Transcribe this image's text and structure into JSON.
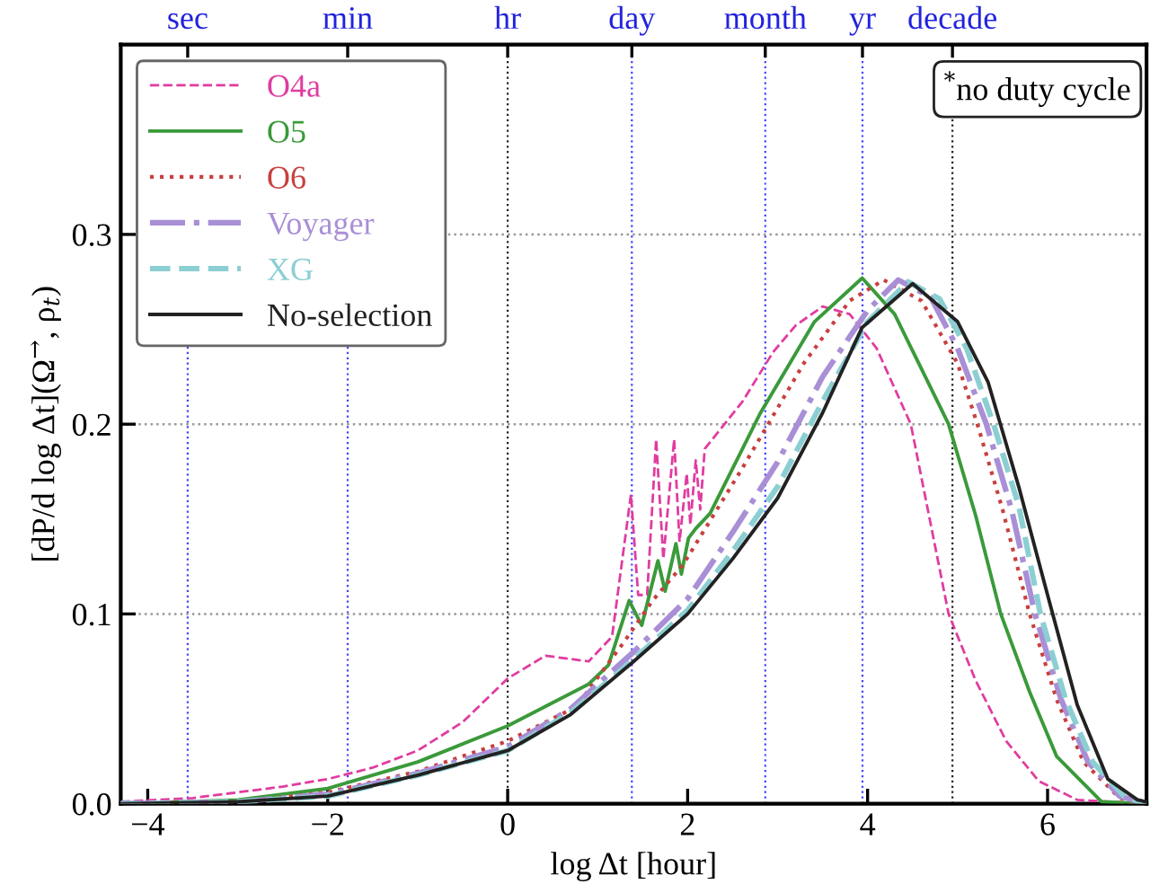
{
  "chart_data": {
    "type": "line",
    "xlabel": "log Δt [hour]",
    "ylabel": "[dP/d log Δt](Ω$^{→}$, ρ$_{t}$)",
    "xlim": [
      -4.3,
      7.1
    ],
    "ylim": [
      0,
      0.4
    ],
    "xticks": [
      {
        "value": -4,
        "label": "−4"
      },
      {
        "value": -2,
        "label": "−2"
      },
      0,
      2,
      4,
      6
    ],
    "yticks": [
      {
        "value": 0,
        "label": "0.0"
      },
      0.1,
      0.2,
      0.3
    ],
    "ref_lines": [
      {
        "axis": "x",
        "value": -3.556,
        "label": "sec",
        "color": "#4444ff",
        "line_style": "dotted"
      },
      {
        "axis": "x",
        "value": -1.778,
        "label": "min",
        "color": "#4444ff",
        "line_style": "dotted"
      },
      {
        "axis": "x",
        "value": 0,
        "label": "hr",
        "color": "#222222",
        "line_style": "dotted"
      },
      {
        "axis": "x",
        "value": 1.38,
        "label": "day",
        "color": "#4444ff",
        "line_style": "dotted"
      },
      {
        "axis": "x",
        "value": 2.863,
        "label": "month",
        "color": "#4444ff",
        "line_style": "dotted"
      },
      {
        "axis": "x",
        "value": 3.943,
        "label": "yr",
        "color": "#4444ff",
        "line_style": "dotted"
      },
      {
        "axis": "x",
        "value": 4.943,
        "label": "decade",
        "color": "#222222",
        "line_style": "dotted"
      }
    ],
    "grid": "y",
    "legend": "top left",
    "annotations": [
      "$^{*}$no duty cycle"
    ],
    "series": [
      {
        "name": "O4a",
        "color": "#e03ca0",
        "line_style": "dashed",
        "x": [
          -4.3,
          -3.5,
          -3,
          -2.5,
          -2,
          -1.5,
          -1,
          -0.5,
          0,
          0.42,
          0.9,
          1.16,
          1.37,
          1.45,
          1.55,
          1.65,
          1.73,
          1.85,
          1.91,
          1.99,
          2.03,
          2.09,
          2.14,
          2.19,
          2.61,
          2.95,
          3.2,
          3.5,
          3.8,
          4.1,
          4.48,
          4.9,
          5.2,
          5.54,
          5.9,
          6.33,
          7.1
        ],
        "values": [
          0.001,
          0.003,
          0.006,
          0.009,
          0.013,
          0.019,
          0.028,
          0.043,
          0.066,
          0.078,
          0.075,
          0.088,
          0.163,
          0.11,
          0.11,
          0.192,
          0.129,
          0.192,
          0.138,
          0.174,
          0.147,
          0.181,
          0.155,
          0.187,
          0.212,
          0.238,
          0.252,
          0.262,
          0.258,
          0.24,
          0.2,
          0.1,
          0.065,
          0.033,
          0.012,
          0.002,
          0
        ]
      },
      {
        "name": "O5",
        "color": "#3a9a3a",
        "line_style": "solid",
        "x": [
          -4.3,
          -3,
          -2,
          -1,
          0,
          0.9,
          1.12,
          1.35,
          1.49,
          1.67,
          1.75,
          1.87,
          1.93,
          2.01,
          2.09,
          2.25,
          2.81,
          3.41,
          3.94,
          4.3,
          4.6,
          4.9,
          5.2,
          5.48,
          5.8,
          6.1,
          6.6,
          7.1
        ],
        "values": [
          0,
          0.002,
          0.008,
          0.022,
          0.041,
          0.063,
          0.073,
          0.107,
          0.094,
          0.128,
          0.112,
          0.137,
          0.121,
          0.14,
          0.145,
          0.153,
          0.206,
          0.254,
          0.277,
          0.258,
          0.229,
          0.2,
          0.152,
          0.1,
          0.059,
          0.025,
          0.001,
          0
        ]
      },
      {
        "name": "O6",
        "color": "#c84040",
        "line_style": "dotted",
        "x": [
          -4.3,
          -3,
          -2,
          -1,
          0,
          0.76,
          1.29,
          1.61,
          1.95,
          2.61,
          3.29,
          3.8,
          4.18,
          4.6,
          5.0,
          5.22,
          5.5,
          5.8,
          6.1,
          6.4,
          6.8,
          7.1
        ],
        "values": [
          0,
          0.001,
          0.006,
          0.017,
          0.033,
          0.051,
          0.085,
          0.107,
          0.126,
          0.177,
          0.232,
          0.265,
          0.276,
          0.265,
          0.232,
          0.2,
          0.155,
          0.1,
          0.055,
          0.022,
          0.003,
          0
        ]
      },
      {
        "name": "Voyager",
        "color": "#a98fd6",
        "line_style": "dashdot",
        "x": [
          -4.3,
          -3,
          -2,
          -1,
          0,
          0.7,
          1.4,
          2,
          2.5,
          3,
          3.5,
          4,
          4.34,
          4.7,
          5.0,
          5.32,
          5.6,
          5.86,
          6.15,
          6.45,
          6.8,
          7.1
        ],
        "values": [
          0,
          0.001,
          0.005,
          0.016,
          0.03,
          0.05,
          0.08,
          0.108,
          0.143,
          0.18,
          0.225,
          0.26,
          0.276,
          0.267,
          0.24,
          0.2,
          0.155,
          0.1,
          0.055,
          0.022,
          0.004,
          0
        ]
      },
      {
        "name": "XG",
        "color": "#8ccfd3",
        "line_style": "dashed",
        "x": [
          -4.3,
          -3,
          -2,
          -1,
          0,
          0.7,
          1.4,
          2,
          2.5,
          3,
          3.5,
          4,
          4.45,
          4.8,
          5.1,
          5.4,
          5.68,
          5.92,
          6.2,
          6.5,
          6.85,
          7.1
        ],
        "values": [
          0,
          0.001,
          0.004,
          0.015,
          0.028,
          0.048,
          0.076,
          0.102,
          0.133,
          0.167,
          0.212,
          0.254,
          0.275,
          0.266,
          0.24,
          0.2,
          0.157,
          0.1,
          0.055,
          0.022,
          0.004,
          0
        ]
      },
      {
        "name": "No-selection",
        "color": "#222222",
        "line_style": "solid",
        "x": [
          -4.3,
          -3,
          -2,
          -1,
          0,
          0.7,
          1.4,
          2,
          2.5,
          3,
          3.5,
          3.94,
          4.5,
          5.0,
          5.34,
          5.68,
          6.0,
          6.33,
          6.67,
          7.0,
          7.1
        ],
        "values": [
          0,
          0.001,
          0.004,
          0.015,
          0.028,
          0.047,
          0.075,
          0.1,
          0.129,
          0.161,
          0.206,
          0.251,
          0.274,
          0.254,
          0.222,
          0.167,
          0.11,
          0.052,
          0.013,
          0.002,
          0.001
        ]
      }
    ]
  }
}
